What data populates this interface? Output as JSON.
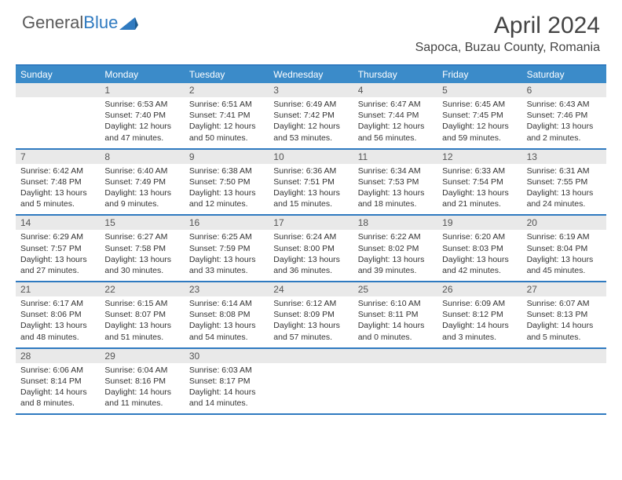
{
  "logo": {
    "text_gray": "General",
    "text_blue": "Blue"
  },
  "title": "April 2024",
  "location": "Sapoca, Buzau County, Romania",
  "day_headers": [
    "Sunday",
    "Monday",
    "Tuesday",
    "Wednesday",
    "Thursday",
    "Friday",
    "Saturday"
  ],
  "colors": {
    "header_bg": "#3b8bc9",
    "border": "#2f7ac0",
    "daynum_bg": "#e9e9e9",
    "text": "#333333",
    "logo_gray": "#5a5a5a",
    "logo_blue": "#2f7ac0"
  },
  "weeks": [
    [
      {
        "num": "",
        "sunrise": "",
        "sunset": "",
        "daylight": ""
      },
      {
        "num": "1",
        "sunrise": "Sunrise: 6:53 AM",
        "sunset": "Sunset: 7:40 PM",
        "daylight": "Daylight: 12 hours and 47 minutes."
      },
      {
        "num": "2",
        "sunrise": "Sunrise: 6:51 AM",
        "sunset": "Sunset: 7:41 PM",
        "daylight": "Daylight: 12 hours and 50 minutes."
      },
      {
        "num": "3",
        "sunrise": "Sunrise: 6:49 AM",
        "sunset": "Sunset: 7:42 PM",
        "daylight": "Daylight: 12 hours and 53 minutes."
      },
      {
        "num": "4",
        "sunrise": "Sunrise: 6:47 AM",
        "sunset": "Sunset: 7:44 PM",
        "daylight": "Daylight: 12 hours and 56 minutes."
      },
      {
        "num": "5",
        "sunrise": "Sunrise: 6:45 AM",
        "sunset": "Sunset: 7:45 PM",
        "daylight": "Daylight: 12 hours and 59 minutes."
      },
      {
        "num": "6",
        "sunrise": "Sunrise: 6:43 AM",
        "sunset": "Sunset: 7:46 PM",
        "daylight": "Daylight: 13 hours and 2 minutes."
      }
    ],
    [
      {
        "num": "7",
        "sunrise": "Sunrise: 6:42 AM",
        "sunset": "Sunset: 7:48 PM",
        "daylight": "Daylight: 13 hours and 5 minutes."
      },
      {
        "num": "8",
        "sunrise": "Sunrise: 6:40 AM",
        "sunset": "Sunset: 7:49 PM",
        "daylight": "Daylight: 13 hours and 9 minutes."
      },
      {
        "num": "9",
        "sunrise": "Sunrise: 6:38 AM",
        "sunset": "Sunset: 7:50 PM",
        "daylight": "Daylight: 13 hours and 12 minutes."
      },
      {
        "num": "10",
        "sunrise": "Sunrise: 6:36 AM",
        "sunset": "Sunset: 7:51 PM",
        "daylight": "Daylight: 13 hours and 15 minutes."
      },
      {
        "num": "11",
        "sunrise": "Sunrise: 6:34 AM",
        "sunset": "Sunset: 7:53 PM",
        "daylight": "Daylight: 13 hours and 18 minutes."
      },
      {
        "num": "12",
        "sunrise": "Sunrise: 6:33 AM",
        "sunset": "Sunset: 7:54 PM",
        "daylight": "Daylight: 13 hours and 21 minutes."
      },
      {
        "num": "13",
        "sunrise": "Sunrise: 6:31 AM",
        "sunset": "Sunset: 7:55 PM",
        "daylight": "Daylight: 13 hours and 24 minutes."
      }
    ],
    [
      {
        "num": "14",
        "sunrise": "Sunrise: 6:29 AM",
        "sunset": "Sunset: 7:57 PM",
        "daylight": "Daylight: 13 hours and 27 minutes."
      },
      {
        "num": "15",
        "sunrise": "Sunrise: 6:27 AM",
        "sunset": "Sunset: 7:58 PM",
        "daylight": "Daylight: 13 hours and 30 minutes."
      },
      {
        "num": "16",
        "sunrise": "Sunrise: 6:25 AM",
        "sunset": "Sunset: 7:59 PM",
        "daylight": "Daylight: 13 hours and 33 minutes."
      },
      {
        "num": "17",
        "sunrise": "Sunrise: 6:24 AM",
        "sunset": "Sunset: 8:00 PM",
        "daylight": "Daylight: 13 hours and 36 minutes."
      },
      {
        "num": "18",
        "sunrise": "Sunrise: 6:22 AM",
        "sunset": "Sunset: 8:02 PM",
        "daylight": "Daylight: 13 hours and 39 minutes."
      },
      {
        "num": "19",
        "sunrise": "Sunrise: 6:20 AM",
        "sunset": "Sunset: 8:03 PM",
        "daylight": "Daylight: 13 hours and 42 minutes."
      },
      {
        "num": "20",
        "sunrise": "Sunrise: 6:19 AM",
        "sunset": "Sunset: 8:04 PM",
        "daylight": "Daylight: 13 hours and 45 minutes."
      }
    ],
    [
      {
        "num": "21",
        "sunrise": "Sunrise: 6:17 AM",
        "sunset": "Sunset: 8:06 PM",
        "daylight": "Daylight: 13 hours and 48 minutes."
      },
      {
        "num": "22",
        "sunrise": "Sunrise: 6:15 AM",
        "sunset": "Sunset: 8:07 PM",
        "daylight": "Daylight: 13 hours and 51 minutes."
      },
      {
        "num": "23",
        "sunrise": "Sunrise: 6:14 AM",
        "sunset": "Sunset: 8:08 PM",
        "daylight": "Daylight: 13 hours and 54 minutes."
      },
      {
        "num": "24",
        "sunrise": "Sunrise: 6:12 AM",
        "sunset": "Sunset: 8:09 PM",
        "daylight": "Daylight: 13 hours and 57 minutes."
      },
      {
        "num": "25",
        "sunrise": "Sunrise: 6:10 AM",
        "sunset": "Sunset: 8:11 PM",
        "daylight": "Daylight: 14 hours and 0 minutes."
      },
      {
        "num": "26",
        "sunrise": "Sunrise: 6:09 AM",
        "sunset": "Sunset: 8:12 PM",
        "daylight": "Daylight: 14 hours and 3 minutes."
      },
      {
        "num": "27",
        "sunrise": "Sunrise: 6:07 AM",
        "sunset": "Sunset: 8:13 PM",
        "daylight": "Daylight: 14 hours and 5 minutes."
      }
    ],
    [
      {
        "num": "28",
        "sunrise": "Sunrise: 6:06 AM",
        "sunset": "Sunset: 8:14 PM",
        "daylight": "Daylight: 14 hours and 8 minutes."
      },
      {
        "num": "29",
        "sunrise": "Sunrise: 6:04 AM",
        "sunset": "Sunset: 8:16 PM",
        "daylight": "Daylight: 14 hours and 11 minutes."
      },
      {
        "num": "30",
        "sunrise": "Sunrise: 6:03 AM",
        "sunset": "Sunset: 8:17 PM",
        "daylight": "Daylight: 14 hours and 14 minutes."
      },
      {
        "num": "",
        "sunrise": "",
        "sunset": "",
        "daylight": ""
      },
      {
        "num": "",
        "sunrise": "",
        "sunset": "",
        "daylight": ""
      },
      {
        "num": "",
        "sunrise": "",
        "sunset": "",
        "daylight": ""
      },
      {
        "num": "",
        "sunrise": "",
        "sunset": "",
        "daylight": ""
      }
    ]
  ]
}
